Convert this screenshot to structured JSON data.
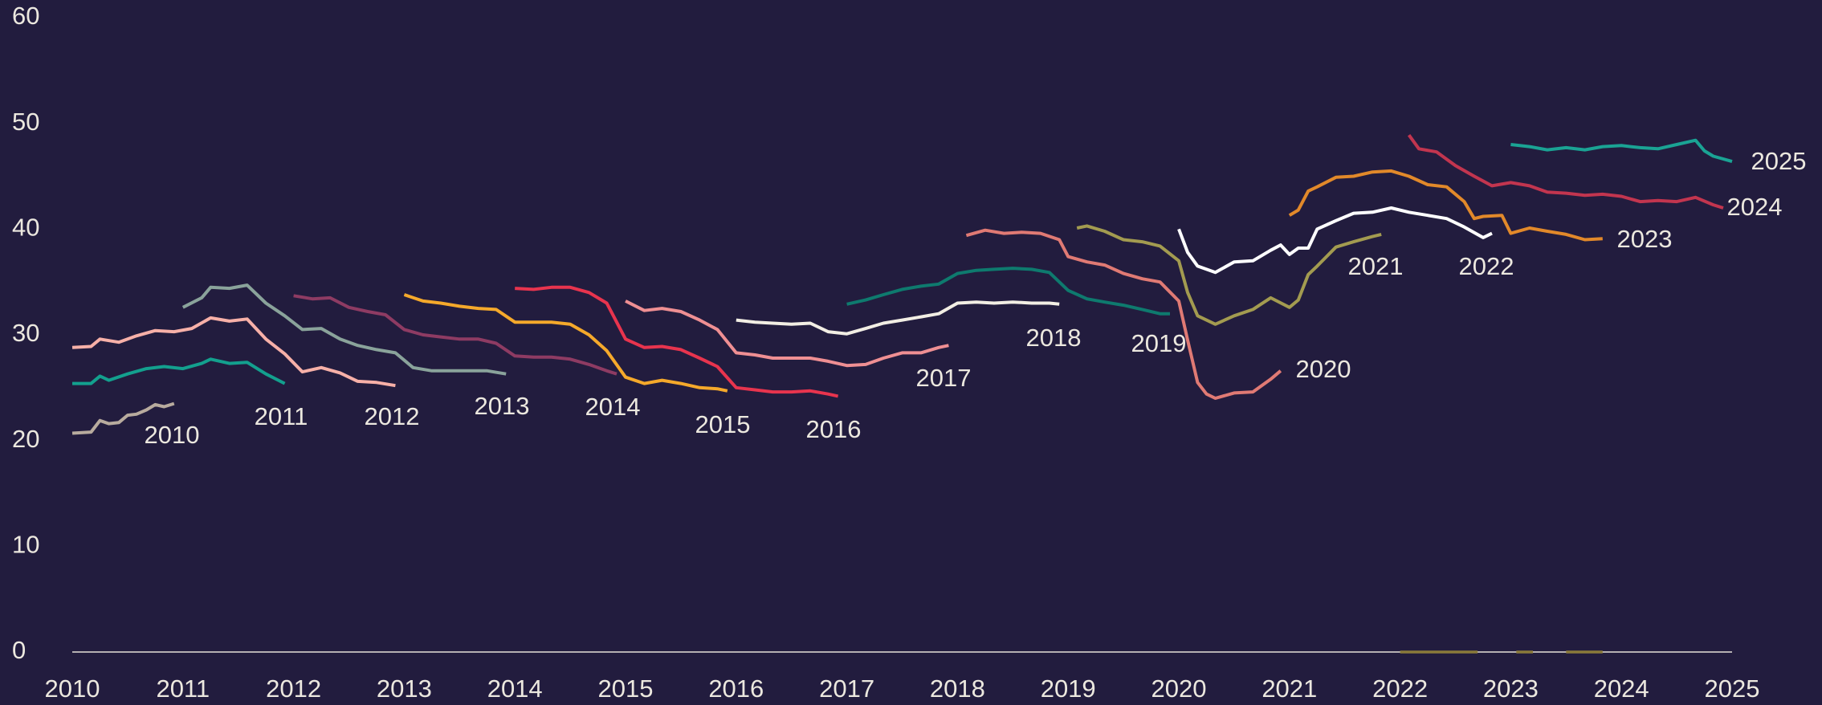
{
  "chart_data": {
    "type": "line",
    "xlim": [
      2010,
      2025
    ],
    "xticks": [
      2010,
      2011,
      2012,
      2013,
      2014,
      2015,
      2016,
      2017,
      2018,
      2019,
      2020,
      2021,
      2022,
      2023,
      2024,
      2025
    ],
    "ylim": [
      0,
      60
    ],
    "yticks": [
      0,
      10,
      20,
      30,
      40,
      50,
      60
    ],
    "grid": false,
    "series": [
      {
        "name": "2010",
        "color": "#b8ab9e",
        "x": [
          2010,
          2010.17,
          2010.25,
          2010.33,
          2010.42,
          2010.5,
          2010.58,
          2010.67,
          2010.75,
          2010.83,
          2010.92
        ],
        "values": [
          20.7,
          20.8,
          21.9,
          21.6,
          21.7,
          22.4,
          22.5,
          22.9,
          23.4,
          23.2,
          23.5
        ]
      },
      {
        "name": "2011",
        "color": "#13a08e",
        "x": [
          2010,
          2010.17,
          2010.25,
          2010.33,
          2010.5,
          2010.67,
          2010.83,
          2011,
          2011.17,
          2011.25,
          2011.42,
          2011.58,
          2011.75,
          2011.92
        ],
        "values": [
          25.4,
          25.4,
          26.1,
          25.7,
          26.3,
          26.8,
          27.0,
          26.8,
          27.3,
          27.7,
          27.3,
          27.4,
          26.3,
          25.4
        ]
      },
      {
        "name": "2012",
        "color": "#f7b0a8",
        "x": [
          2010,
          2010.17,
          2010.25,
          2010.42,
          2010.58,
          2010.75,
          2010.92,
          2011.08,
          2011.25,
          2011.42,
          2011.58,
          2011.75,
          2011.92,
          2012.08,
          2012.25,
          2012.42,
          2012.58,
          2012.75,
          2012.92
        ],
        "values": [
          28.8,
          28.9,
          29.6,
          29.3,
          29.9,
          30.4,
          30.3,
          30.6,
          31.6,
          31.3,
          31.5,
          29.6,
          28.2,
          26.5,
          26.9,
          26.4,
          25.6,
          25.5,
          25.2
        ]
      },
      {
        "name": "2013",
        "color": "#8aa39b",
        "x": [
          2011,
          2011.17,
          2011.25,
          2011.42,
          2011.58,
          2011.75,
          2011.92,
          2012.08,
          2012.25,
          2012.42,
          2012.58,
          2012.75,
          2012.92,
          2013.08,
          2013.25,
          2013.42,
          2013.58,
          2013.75,
          2013.92
        ],
        "values": [
          32.6,
          33.5,
          34.5,
          34.4,
          34.7,
          33.0,
          31.8,
          30.5,
          30.6,
          29.6,
          29.0,
          28.6,
          28.3,
          26.9,
          26.6,
          26.6,
          26.6,
          26.6,
          26.3
        ]
      },
      {
        "name": "2014",
        "color": "#8e3b63",
        "x": [
          2012,
          2012.17,
          2012.33,
          2012.5,
          2012.67,
          2012.83,
          2013,
          2013.17,
          2013.33,
          2013.5,
          2013.67,
          2013.83,
          2014,
          2014.17,
          2014.33,
          2014.5,
          2014.67,
          2014.83,
          2014.92
        ],
        "values": [
          33.7,
          33.4,
          33.5,
          32.6,
          32.2,
          31.9,
          30.5,
          30.0,
          29.8,
          29.6,
          29.6,
          29.2,
          28.0,
          27.9,
          27.9,
          27.7,
          27.2,
          26.6,
          26.3
        ]
      },
      {
        "name": "2015",
        "color": "#f5a92b",
        "x": [
          2013,
          2013.17,
          2013.33,
          2013.5,
          2013.67,
          2013.83,
          2014,
          2014.17,
          2014.33,
          2014.5,
          2014.67,
          2014.83,
          2015,
          2015.17,
          2015.33,
          2015.5,
          2015.67,
          2015.83,
          2015.92
        ],
        "values": [
          33.8,
          33.2,
          33.0,
          32.7,
          32.5,
          32.4,
          31.2,
          31.2,
          31.2,
          31.0,
          30.0,
          28.5,
          26.0,
          25.4,
          25.7,
          25.4,
          25.0,
          24.9,
          24.7
        ]
      },
      {
        "name": "2016",
        "color": "#e8344e",
        "x": [
          2014,
          2014.17,
          2014.33,
          2014.5,
          2014.67,
          2014.83,
          2015,
          2015.17,
          2015.33,
          2015.5,
          2015.67,
          2015.83,
          2016,
          2016.17,
          2016.33,
          2016.5,
          2016.67,
          2016.83,
          2016.92
        ],
        "values": [
          34.4,
          34.3,
          34.5,
          34.5,
          34.0,
          33.0,
          29.6,
          28.8,
          28.9,
          28.6,
          27.8,
          27.0,
          25.0,
          24.8,
          24.6,
          24.6,
          24.7,
          24.4,
          24.2
        ]
      },
      {
        "name": "2017",
        "color": "#ef8f93",
        "x": [
          2015,
          2015.17,
          2015.33,
          2015.5,
          2015.67,
          2015.83,
          2016,
          2016.17,
          2016.33,
          2016.5,
          2016.67,
          2016.83,
          2017,
          2017.17,
          2017.33,
          2017.5,
          2017.67,
          2017.83,
          2017.92
        ],
        "values": [
          33.2,
          32.3,
          32.5,
          32.2,
          31.4,
          30.5,
          28.3,
          28.1,
          27.8,
          27.8,
          27.8,
          27.5,
          27.1,
          27.2,
          27.8,
          28.3,
          28.3,
          28.8,
          29.0
        ]
      },
      {
        "name": "2018",
        "color": "#f2eee4",
        "x": [
          2016,
          2016.17,
          2016.33,
          2016.5,
          2016.67,
          2016.83,
          2017,
          2017.17,
          2017.33,
          2017.5,
          2017.67,
          2017.83,
          2018,
          2018.17,
          2018.33,
          2018.5,
          2018.67,
          2018.83,
          2018.92
        ],
        "values": [
          31.4,
          31.2,
          31.1,
          31.0,
          31.1,
          30.3,
          30.1,
          30.6,
          31.1,
          31.4,
          31.7,
          32.0,
          33.0,
          33.1,
          33.0,
          33.1,
          33.0,
          33.0,
          32.9
        ]
      },
      {
        "name": "2019",
        "color": "#0e7a6e",
        "x": [
          2017,
          2017.17,
          2017.33,
          2017.5,
          2017.67,
          2017.83,
          2018,
          2018.17,
          2018.33,
          2018.5,
          2018.67,
          2018.83,
          2019,
          2019.17,
          2019.33,
          2019.5,
          2019.67,
          2019.83,
          2019.92
        ],
        "values": [
          32.9,
          33.3,
          33.8,
          34.3,
          34.6,
          34.8,
          35.8,
          36.1,
          36.2,
          36.3,
          36.2,
          35.9,
          34.2,
          33.4,
          33.1,
          32.8,
          32.4,
          32.0,
          32.0
        ]
      },
      {
        "name": "2020",
        "color": "#e07a74",
        "x": [
          2018.08,
          2018.25,
          2018.42,
          2018.58,
          2018.75,
          2018.92,
          2019,
          2019.17,
          2019.33,
          2019.5,
          2019.67,
          2019.83,
          2020,
          2020.08,
          2020.17,
          2020.25,
          2020.33,
          2020.5,
          2020.67,
          2020.83,
          2020.92
        ],
        "values": [
          39.4,
          39.9,
          39.6,
          39.7,
          39.6,
          39.0,
          37.4,
          36.9,
          36.6,
          35.8,
          35.3,
          35.0,
          33.2,
          29.5,
          25.5,
          24.4,
          24.0,
          24.5,
          24.6,
          25.8,
          26.6
        ]
      },
      {
        "name": "2021",
        "color": "#a39b50",
        "x": [
          2019.08,
          2019.17,
          2019.33,
          2019.5,
          2019.67,
          2019.83,
          2020,
          2020.08,
          2020.17,
          2020.33,
          2020.5,
          2020.67,
          2020.83,
          2021,
          2021.08,
          2021.17,
          2021.25,
          2021.42,
          2021.58,
          2021.75,
          2021.83
        ],
        "values": [
          40.1,
          40.3,
          39.8,
          39.0,
          38.8,
          38.4,
          37.0,
          34.0,
          31.8,
          31.0,
          31.8,
          32.4,
          33.5,
          32.6,
          33.3,
          35.7,
          36.5,
          38.3,
          38.8,
          39.3,
          39.5
        ]
      },
      {
        "name": "2022",
        "color": "#ffffff",
        "x": [
          2020,
          2020.08,
          2020.17,
          2020.33,
          2020.5,
          2020.67,
          2020.83,
          2020.92,
          2021,
          2021.08,
          2021.17,
          2021.25,
          2021.42,
          2021.58,
          2021.75,
          2021.92,
          2022.08,
          2022.25,
          2022.42,
          2022.58,
          2022.75,
          2022.83
        ],
        "values": [
          40.0,
          37.8,
          36.5,
          35.9,
          36.9,
          37.0,
          38.0,
          38.5,
          37.6,
          38.2,
          38.2,
          40.0,
          40.8,
          41.5,
          41.6,
          42.0,
          41.6,
          41.3,
          41.0,
          40.2,
          39.2,
          39.6
        ]
      },
      {
        "name": "2023",
        "color": "#e2892a",
        "x": [
          2021,
          2021.08,
          2021.17,
          2021.25,
          2021.42,
          2021.58,
          2021.75,
          2021.92,
          2022.08,
          2022.25,
          2022.42,
          2022.58,
          2022.67,
          2022.75,
          2022.92,
          2023,
          2023.17,
          2023.33,
          2023.5,
          2023.67,
          2023.83
        ],
        "values": [
          41.3,
          41.8,
          43.6,
          44.0,
          44.9,
          45.0,
          45.4,
          45.5,
          45.0,
          44.2,
          44.0,
          42.6,
          41.0,
          41.2,
          41.3,
          39.6,
          40.1,
          39.8,
          39.5,
          39.0,
          39.1
        ]
      },
      {
        "name": "2024",
        "color": "#c2354f",
        "x": [
          2022.08,
          2022.17,
          2022.33,
          2022.5,
          2022.67,
          2022.83,
          2023,
          2023.17,
          2023.33,
          2023.5,
          2023.67,
          2023.83,
          2024,
          2024.17,
          2024.33,
          2024.5,
          2024.67,
          2024.83,
          2024.92
        ],
        "values": [
          48.9,
          47.6,
          47.3,
          46.0,
          45.0,
          44.1,
          44.4,
          44.1,
          43.5,
          43.4,
          43.2,
          43.3,
          43.1,
          42.6,
          42.7,
          42.6,
          43.0,
          42.3,
          42.0
        ]
      },
      {
        "name": "2025",
        "color": "#1aa394",
        "x": [
          2023,
          2023.17,
          2023.33,
          2023.5,
          2023.67,
          2023.83,
          2024,
          2024.17,
          2024.33,
          2024.5,
          2024.67,
          2024.75,
          2024.83,
          2025
        ],
        "values": [
          48.0,
          47.8,
          47.5,
          47.7,
          47.5,
          47.8,
          47.9,
          47.7,
          47.6,
          48.0,
          48.4,
          47.4,
          46.9,
          46.4
        ]
      },
      {
        "color": "#8a7a3a",
        "x": [
          2022,
          2022.7,
          2022.85,
          2023.05,
          2023.2,
          2023.35,
          2023.5,
          2023.83
        ],
        "values": [
          0,
          0,
          null,
          0,
          0,
          null,
          0,
          0
        ]
      }
    ]
  }
}
